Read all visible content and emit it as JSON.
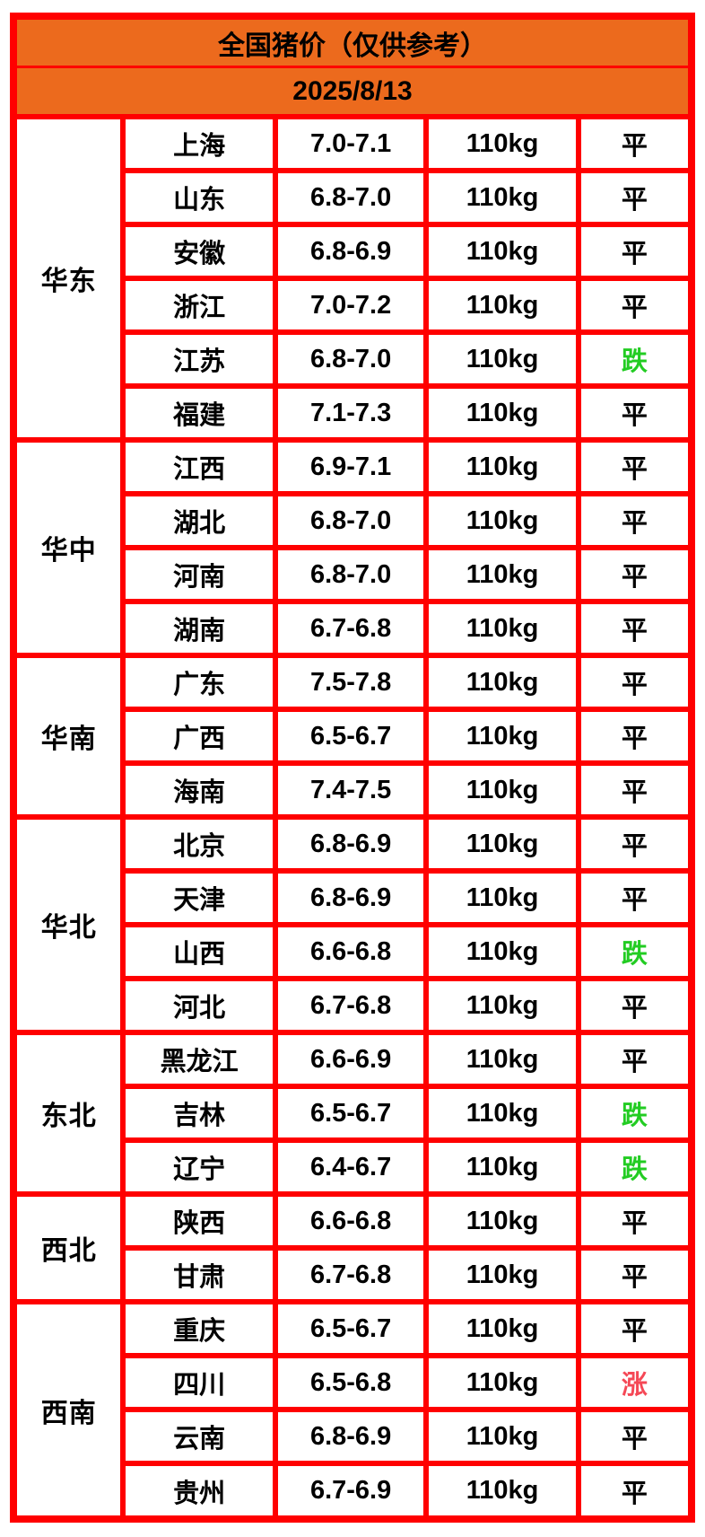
{
  "header": {
    "title": "全国猪价（仅供参考）",
    "date": "2025/8/13"
  },
  "colors": {
    "header_bg": "#EC6A1D",
    "border": "#FF0000",
    "cell_bg": "#FFFFFF",
    "text": "#000000",
    "trend_flat": "#000000",
    "trend_down": "#22CC22",
    "trend_up": "#F54856"
  },
  "chart_data": {
    "type": "table",
    "title": "全国猪价（仅供参考）",
    "date": "2025/8/13",
    "columns": [
      "region",
      "province",
      "price_range",
      "weight",
      "trend"
    ],
    "regions": [
      {
        "name": "华东",
        "rows": [
          {
            "province": "上海",
            "price": "7.0-7.1",
            "weight": "110kg",
            "trend": "平",
            "trend_state": "flat"
          },
          {
            "province": "山东",
            "price": "6.8-7.0",
            "weight": "110kg",
            "trend": "平",
            "trend_state": "flat"
          },
          {
            "province": "安徽",
            "price": "6.8-6.9",
            "weight": "110kg",
            "trend": "平",
            "trend_state": "flat"
          },
          {
            "province": "浙江",
            "price": "7.0-7.2",
            "weight": "110kg",
            "trend": "平",
            "trend_state": "flat"
          },
          {
            "province": "江苏",
            "price": "6.8-7.0",
            "weight": "110kg",
            "trend": "跌",
            "trend_state": "down"
          },
          {
            "province": "福建",
            "price": "7.1-7.3",
            "weight": "110kg",
            "trend": "平",
            "trend_state": "flat"
          }
        ]
      },
      {
        "name": "华中",
        "rows": [
          {
            "province": "江西",
            "price": "6.9-7.1",
            "weight": "110kg",
            "trend": "平",
            "trend_state": "flat"
          },
          {
            "province": "湖北",
            "price": "6.8-7.0",
            "weight": "110kg",
            "trend": "平",
            "trend_state": "flat"
          },
          {
            "province": "河南",
            "price": "6.8-7.0",
            "weight": "110kg",
            "trend": "平",
            "trend_state": "flat"
          },
          {
            "province": "湖南",
            "price": "6.7-6.8",
            "weight": "110kg",
            "trend": "平",
            "trend_state": "flat"
          }
        ]
      },
      {
        "name": "华南",
        "rows": [
          {
            "province": "广东",
            "price": "7.5-7.8",
            "weight": "110kg",
            "trend": "平",
            "trend_state": "flat"
          },
          {
            "province": "广西",
            "price": "6.5-6.7",
            "weight": "110kg",
            "trend": "平",
            "trend_state": "flat"
          },
          {
            "province": "海南",
            "price": "7.4-7.5",
            "weight": "110kg",
            "trend": "平",
            "trend_state": "flat"
          }
        ]
      },
      {
        "name": "华北",
        "rows": [
          {
            "province": "北京",
            "price": "6.8-6.9",
            "weight": "110kg",
            "trend": "平",
            "trend_state": "flat"
          },
          {
            "province": "天津",
            "price": "6.8-6.9",
            "weight": "110kg",
            "trend": "平",
            "trend_state": "flat"
          },
          {
            "province": "山西",
            "price": "6.6-6.8",
            "weight": "110kg",
            "trend": "跌",
            "trend_state": "down"
          },
          {
            "province": "河北",
            "price": "6.7-6.8",
            "weight": "110kg",
            "trend": "平",
            "trend_state": "flat"
          }
        ]
      },
      {
        "name": "东北",
        "rows": [
          {
            "province": "黑龙江",
            "price": "6.6-6.9",
            "weight": "110kg",
            "trend": "平",
            "trend_state": "flat"
          },
          {
            "province": "吉林",
            "price": "6.5-6.7",
            "weight": "110kg",
            "trend": "跌",
            "trend_state": "down"
          },
          {
            "province": "辽宁",
            "price": "6.4-6.7",
            "weight": "110kg",
            "trend": "跌",
            "trend_state": "down"
          }
        ]
      },
      {
        "name": "西北",
        "rows": [
          {
            "province": "陕西",
            "price": "6.6-6.8",
            "weight": "110kg",
            "trend": "平",
            "trend_state": "flat"
          },
          {
            "province": "甘肃",
            "price": "6.7-6.8",
            "weight": "110kg",
            "trend": "平",
            "trend_state": "flat"
          }
        ]
      },
      {
        "name": "西南",
        "rows": [
          {
            "province": "重庆",
            "price": "6.5-6.7",
            "weight": "110kg",
            "trend": "平",
            "trend_state": "flat"
          },
          {
            "province": "四川",
            "price": "6.5-6.8",
            "weight": "110kg",
            "trend": "涨",
            "trend_state": "up"
          },
          {
            "province": "云南",
            "price": "6.8-6.9",
            "weight": "110kg",
            "trend": "平",
            "trend_state": "flat"
          },
          {
            "province": "贵州",
            "price": "6.7-6.9",
            "weight": "110kg",
            "trend": "平",
            "trend_state": "flat"
          }
        ]
      }
    ]
  }
}
